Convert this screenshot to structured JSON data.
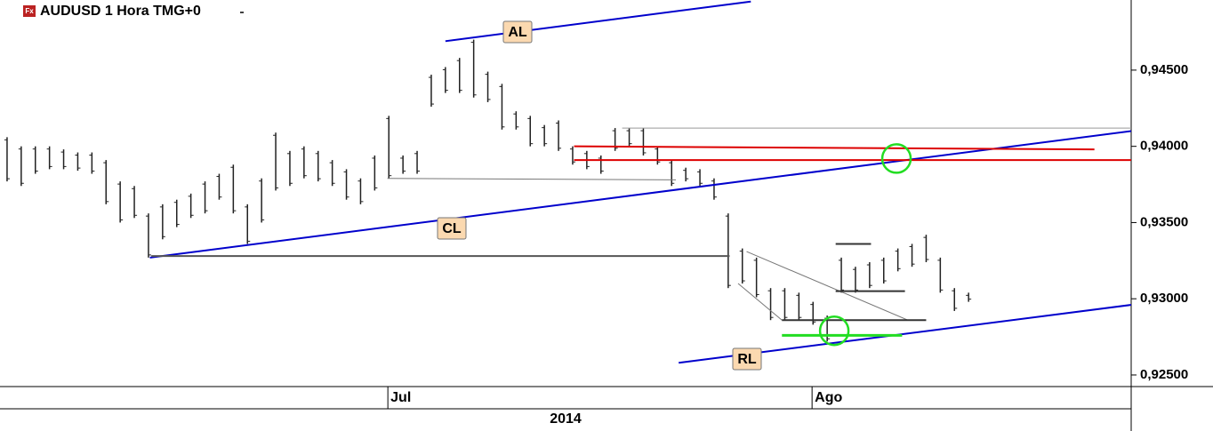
{
  "chart_data": {
    "type": "range",
    "title": "AUDUSD 1 Hora TMG+0",
    "icon_text": "Fx",
    "year_label": "2014",
    "categories": [
      null,
      null,
      null,
      null,
      null,
      null,
      null,
      null,
      null,
      null,
      null,
      null,
      null,
      null,
      null,
      null,
      null,
      null,
      null,
      null,
      null,
      null,
      null,
      null,
      null,
      null,
      null,
      null,
      "Jul",
      null,
      null,
      null,
      null,
      null,
      null,
      null,
      null,
      null,
      null,
      null,
      null,
      null,
      null,
      null,
      null,
      null,
      null,
      null,
      null,
      null,
      null,
      null,
      null,
      null,
      null,
      null,
      null,
      null,
      "Ago",
      null,
      null,
      null,
      null,
      null,
      null,
      null,
      null,
      null,
      null,
      null,
      null,
      null,
      null,
      null,
      null,
      null,
      null,
      null,
      null,
      null
    ],
    "high": [
      0.9406,
      0.94,
      0.94,
      0.94,
      0.9398,
      0.9396,
      0.9396,
      0.9391,
      0.9377,
      0.9374,
      0.9356,
      0.9362,
      0.9365,
      0.9369,
      0.9377,
      0.9382,
      0.9388,
      0.9362,
      0.9379,
      0.9409,
      0.9397,
      0.94,
      0.9397,
      0.9391,
      0.9385,
      0.9379,
      0.9394,
      0.942,
      0.9394,
      0.9397,
      0.9447,
      0.9452,
      0.9458,
      0.947,
      0.9449,
      0.9441,
      0.9423,
      0.942,
      0.9414,
      0.9417,
      0.94,
      0.9397,
      0.9394,
      0.9412,
      0.9412,
      0.9412,
      0.94,
      0.9391,
      0.9386,
      0.9385,
      0.9379,
      0.9356,
      0.9333,
      0.9327,
      0.9307,
      0.9307,
      0.9304,
      0.9298,
      0.9289,
      0.9327,
      0.9321,
      0.9324,
      0.9327,
      0.9333,
      0.9336,
      0.9342,
      0.9327,
      0.9307,
      0.9304,
      null,
      null,
      null,
      null,
      null,
      null,
      null,
      null,
      null,
      null,
      null
    ],
    "low": [
      0.9377,
      0.9374,
      0.9382,
      0.9385,
      0.9385,
      0.9384,
      0.9382,
      0.9362,
      0.935,
      0.9353,
      0.9327,
      0.9339,
      0.9347,
      0.9353,
      0.9356,
      0.9365,
      0.9356,
      0.9336,
      0.935,
      0.9371,
      0.9374,
      0.9379,
      0.9377,
      0.9374,
      0.9365,
      0.9362,
      0.9371,
      0.9379,
      0.9382,
      0.9382,
      0.9426,
      0.9435,
      0.9435,
      0.9432,
      0.9429,
      0.9411,
      0.9411,
      0.94,
      0.94,
      0.9397,
      0.9388,
      0.9385,
      0.9382,
      0.9397,
      0.94,
      0.9394,
      0.9388,
      0.9374,
      0.9377,
      0.9374,
      0.9365,
      0.9307,
      0.931,
      0.9301,
      0.9286,
      0.9286,
      0.9286,
      0.9283,
      0.9272,
      0.9304,
      0.9304,
      0.9307,
      0.931,
      0.9318,
      0.9321,
      0.9324,
      0.9304,
      0.9292,
      0.9298,
      null,
      null,
      null,
      null,
      null,
      null,
      null,
      null,
      null,
      null,
      null
    ],
    "color": "#222222",
    "ylim": [
      0.92424,
      0.9496
    ],
    "yticks": [
      {
        "value": 0.925,
        "label": "0,92500"
      },
      {
        "value": 0.93,
        "label": "0,93000"
      },
      {
        "value": 0.935,
        "label": "0,93500"
      },
      {
        "value": 0.94,
        "label": "0,94000"
      },
      {
        "value": 0.945,
        "label": "0,94500"
      }
    ],
    "lines": [
      {
        "color": "#0000cc",
        "x": [
          31.0,
          52.6
        ],
        "y": [
          0.9469,
          0.9495
        ]
      },
      {
        "color": "#0000cc",
        "x": [
          10.1,
          79.5
        ],
        "y": [
          0.9327,
          0.941
        ]
      },
      {
        "color": "#0000cc",
        "x": [
          47.5,
          79.5
        ],
        "y": [
          0.9258,
          0.9296
        ]
      },
      {
        "color": "#dd0000",
        "x": [
          40.1,
          76.9
        ],
        "y": [
          0.94,
          0.9398
        ]
      },
      {
        "color": "#dd0000",
        "x": [
          40.1,
          79.5
        ],
        "y": [
          0.9391,
          0.9391
        ]
      },
      {
        "color": "#22dd22",
        "x": [
          54.8,
          63.3
        ],
        "y": [
          0.9276,
          0.9276
        ]
      },
      {
        "color": "#999999",
        "x": [
          43.5,
          79.5
        ],
        "y": [
          0.9412,
          0.9412
        ]
      },
      {
        "color": "#777777",
        "x": [
          26.9,
          47.3
        ],
        "y": [
          0.9379,
          0.9378
        ]
      },
      {
        "color": "#555555",
        "x": [
          10.2,
          51.1
        ],
        "y": [
          0.9328,
          0.9328
        ]
      },
      {
        "color": "#777777",
        "x": [
          52.3,
          63.7
        ],
        "y": [
          0.9331,
          0.9286
        ]
      },
      {
        "color": "#777777",
        "x": [
          51.7,
          54.8
        ],
        "y": [
          0.931,
          0.9286
        ]
      },
      {
        "color": "#333333",
        "x": [
          54.8,
          65.0
        ],
        "y": [
          0.9286,
          0.9286
        ]
      },
      {
        "color": "#333333",
        "x": [
          58.6,
          63.5
        ],
        "y": [
          0.9305,
          0.9305
        ]
      },
      {
        "color": "#333333",
        "x": [
          58.6,
          61.1
        ],
        "y": [
          0.9336,
          0.9336
        ]
      }
    ],
    "circles": [
      {
        "color": "#22dd22",
        "x": [
          62.9
        ],
        "y": [
          0.9392
        ]
      },
      {
        "color": "#22dd22",
        "x": [
          58.5
        ],
        "y": [
          0.9279
        ]
      }
    ],
    "annotations": [
      "AL",
      "CL",
      "RL"
    ]
  }
}
